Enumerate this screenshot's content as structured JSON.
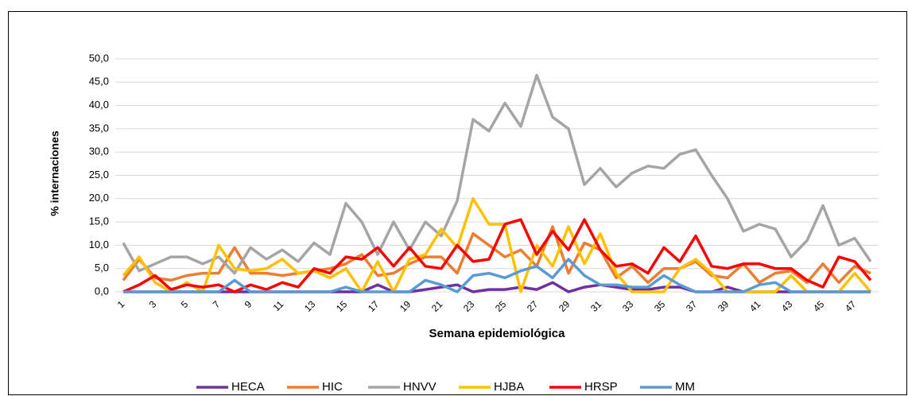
{
  "chart_data": {
    "type": "line",
    "y_label": "% internaciones",
    "x_label": "Semana epidemiológica",
    "categories": [
      "1",
      null,
      "3",
      null,
      "5",
      null,
      "7",
      null,
      "9",
      null,
      "11",
      null,
      "13",
      null,
      "15",
      null,
      "17",
      null,
      "19",
      null,
      "21",
      null,
      "23",
      null,
      "25",
      null,
      "27",
      null,
      "29",
      null,
      "31",
      null,
      "33",
      null,
      "35",
      null,
      "37",
      null,
      "39",
      null,
      "41",
      null,
      "43",
      null,
      "45",
      null,
      "47",
      null
    ],
    "ylim": [
      0,
      50
    ],
    "yticks": [
      {
        "value": 0,
        "label": "0,0"
      },
      {
        "value": 5,
        "label": "5,0"
      },
      {
        "value": 10,
        "label": "10,0"
      },
      {
        "value": 15,
        "label": "15,0"
      },
      {
        "value": 20,
        "label": "20,0"
      },
      {
        "value": 25,
        "label": "25,0"
      },
      {
        "value": 30,
        "label": "30,0"
      },
      {
        "value": 35,
        "label": "35,0"
      },
      {
        "value": 40,
        "label": "40,0"
      },
      {
        "value": 45,
        "label": "45,0"
      },
      {
        "value": 50,
        "label": "50,0"
      }
    ],
    "grid": true,
    "legend": "bottom",
    "series": [
      {
        "name": "HECA",
        "color": "#7030a0",
        "values": [
          0,
          0,
          0,
          0,
          0,
          0,
          0,
          0,
          0,
          0,
          0,
          0,
          0,
          0,
          0,
          0,
          1.5,
          0,
          0,
          0.5,
          1,
          1.5,
          0,
          0.5,
          0.5,
          1,
          0.5,
          2,
          0,
          1,
          1.5,
          1,
          0.5,
          0.5,
          1,
          1,
          0,
          0,
          1,
          0,
          0,
          0,
          0,
          0,
          0,
          0,
          0,
          0
        ]
      },
      {
        "name": "HIC",
        "color": "#ed7d31",
        "values": [
          2.5,
          7,
          3,
          2.5,
          3.5,
          4,
          4,
          9.5,
          4,
          4,
          3.5,
          4,
          4.5,
          5,
          6,
          8,
          3.5,
          4,
          6,
          7.5,
          7.5,
          4,
          12.5,
          10,
          7.5,
          9,
          5.5,
          14,
          4,
          10.5,
          9,
          3,
          5.5,
          2,
          5,
          5,
          6.5,
          3.5,
          3,
          6,
          2,
          4,
          4.5,
          2,
          6,
          2,
          5.5,
          4
        ]
      },
      {
        "name": "HNVV",
        "color": "#a5a5a5",
        "values": [
          10.5,
          4.5,
          6,
          7.5,
          7.5,
          6,
          7.5,
          4,
          9.5,
          7,
          9,
          6.5,
          10.5,
          8,
          19,
          15,
          8,
          15,
          9,
          15,
          12,
          19.5,
          37,
          34.5,
          40.5,
          35.5,
          46.5,
          37.5,
          35,
          23,
          26.5,
          22.5,
          25.5,
          27,
          26.5,
          29.5,
          30.5,
          25,
          20,
          13,
          14.5,
          13.5,
          7.5,
          11,
          18.5,
          10,
          11.5,
          6.5
        ]
      },
      {
        "name": "HJBA",
        "color": "#ffc000",
        "values": [
          3.5,
          7.5,
          2,
          0,
          2,
          0,
          10,
          5,
          4.5,
          5,
          7,
          4,
          4.5,
          3,
          5,
          0,
          6.5,
          0,
          7,
          8,
          13.5,
          9.5,
          20,
          14.5,
          14.5,
          0,
          10,
          5.5,
          14,
          6,
          12.5,
          4,
          0,
          0,
          0,
          5,
          7,
          4,
          0,
          0,
          0,
          0,
          3.5,
          0,
          0,
          0,
          4,
          0
        ]
      },
      {
        "name": "HRSP",
        "color": "#ff0000",
        "values": [
          0,
          1.5,
          3.5,
          0.5,
          1.5,
          1,
          1.5,
          0,
          1.5,
          0.5,
          2,
          1,
          5,
          4,
          7.5,
          7,
          9.5,
          5.5,
          9.5,
          5.5,
          5,
          10,
          6.5,
          7,
          14.5,
          15.5,
          8,
          13,
          9,
          15.5,
          9,
          5.5,
          6,
          4,
          9.5,
          6.5,
          12,
          5.5,
          5,
          6,
          6,
          5,
          5,
          2.5,
          1,
          7.5,
          6.5,
          2.5
        ]
      },
      {
        "name": "MM",
        "color": "#5b9bd5",
        "values": [
          0,
          0,
          0,
          0,
          0,
          0,
          0,
          2.5,
          0,
          0,
          0,
          0,
          0,
          0,
          1,
          0,
          0,
          0,
          0,
          2.5,
          1.5,
          0,
          3.5,
          4,
          3,
          4.5,
          5.5,
          3,
          7,
          3.5,
          1.5,
          1.5,
          1,
          1,
          3.5,
          1.5,
          0,
          0,
          0,
          0,
          1.5,
          2,
          0,
          0,
          0,
          0,
          0,
          0
        ]
      }
    ]
  }
}
